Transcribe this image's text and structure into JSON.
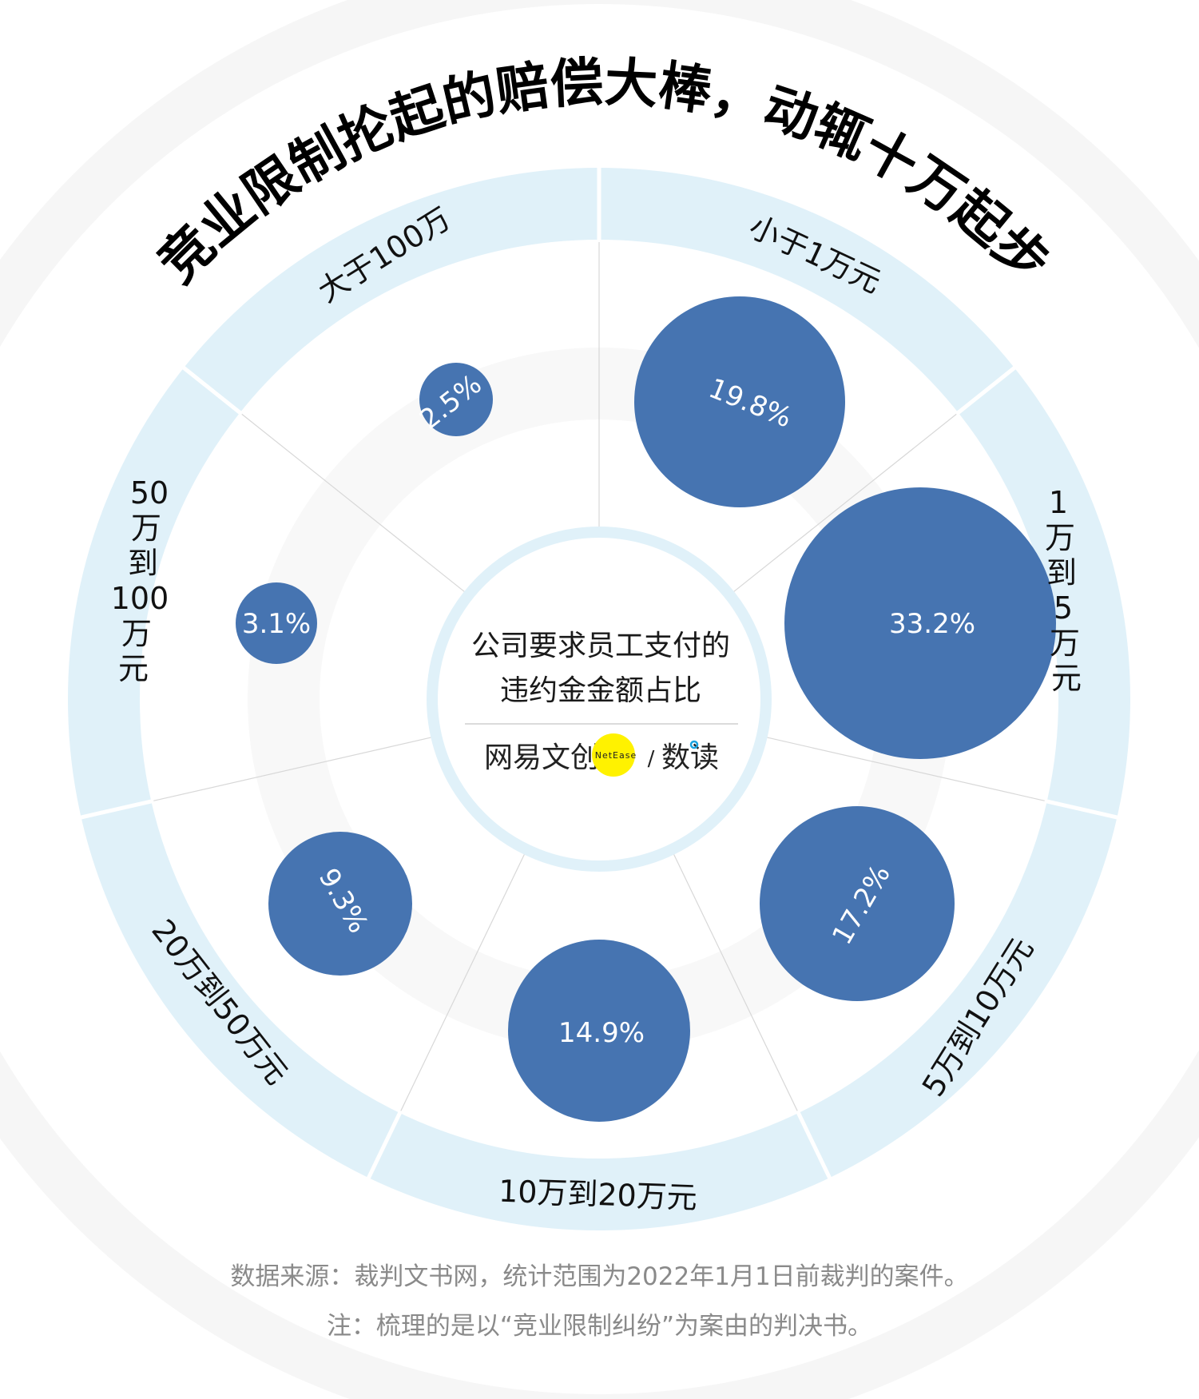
{
  "title": "竞业限制抡起的赔偿大棒，动辄十万起步",
  "center": {
    "line1": "公司要求员工支付的",
    "line2": "违约金金额占比",
    "brand_left": "网易文创",
    "brand_badge": "NetEase",
    "brand_sep": "/",
    "brand_right": "数读"
  },
  "footer": {
    "source": "数据来源：裁判文书网，统计范围为2022年1月1日前裁判的案件。",
    "note": "注：梳理的是以“竞业限制纠纷”为案由的判决书。"
  },
  "colors": {
    "bubble": "#4674B1",
    "ring": "#E0F1F9",
    "faint_ring": "#F8F8F8",
    "background_arc": "#F6F6F6",
    "badge": "#FFF200",
    "divider": "#D8D8D8",
    "footer_text": "#8A8A8A"
  },
  "chart_data": {
    "type": "bubble-radial",
    "title": "竞业限制抡起的赔偿大棒，动辄十万起步",
    "subtitle": "公司要求员工支付的违约金金额占比",
    "unit": "%",
    "categories": [
      "小于1万元",
      "1万到5万元",
      "5万到10万元",
      "10万到20万元",
      "20万到50万元",
      "50万到100万元",
      "大于100万"
    ],
    "values": [
      19.8,
      33.2,
      17.2,
      14.9,
      9.3,
      3.1,
      2.5
    ],
    "labels": [
      "19.8%",
      "33.2%",
      "17.2%",
      "14.9%",
      "9.3%",
      "3.1%",
      "2.5%"
    ],
    "source": "数据来源：裁判文书网，统计范围为2022年1月1日前裁判的案件。",
    "note": "注：梳理的是以“竞业限制纠纷”为案由的判决书。"
  },
  "segments": [
    {
      "label": "小于1万元",
      "value": "19.8%"
    },
    {
      "label": "1万到5万元",
      "value": "33.2%"
    },
    {
      "label": "5万到10万元",
      "value": "17.2%"
    },
    {
      "label": "10万到20万元",
      "value": "14.9%"
    },
    {
      "label": "20万到50万元",
      "value": "9.3%"
    },
    {
      "label": "50万到100万元",
      "value": "3.1%"
    },
    {
      "label": "大于100万",
      "value": "2.5%"
    }
  ]
}
